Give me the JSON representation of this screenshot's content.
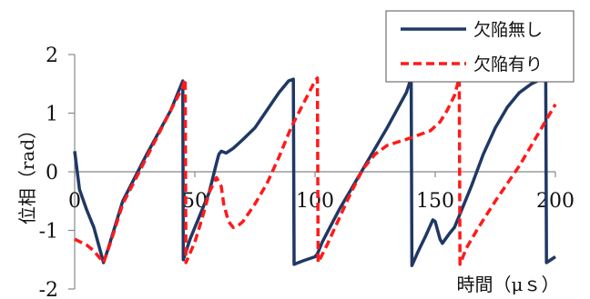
{
  "chart_data": {
    "type": "line",
    "xlabel": "時間（μｓ）",
    "ylabel": "位相（rad）",
    "xlim": [
      0,
      200
    ],
    "ylim": [
      -2,
      2
    ],
    "xticks": [
      "0",
      "50",
      "100",
      "150",
      "200"
    ],
    "yticks": [
      "2",
      "1",
      "0",
      "-1",
      "-2"
    ],
    "grid": false,
    "legend_position": "top-right",
    "series": [
      {
        "name": "欠陥無し",
        "color": "#1f3864",
        "style": "solid",
        "x": [
          0,
          2,
          5,
          8,
          10,
          12,
          14,
          20,
          30,
          40,
          45,
          45.2,
          48,
          52,
          56,
          59,
          60,
          61,
          63,
          66,
          70,
          75,
          80,
          85,
          89,
          91,
          91.3,
          95,
          100,
          101,
          103,
          110,
          120,
          130,
          138,
          140,
          140.3,
          143,
          146,
          149,
          150,
          152,
          153,
          156,
          158,
          160,
          165,
          170,
          175,
          180,
          185,
          190,
          193,
          196,
          196.3,
          200
        ],
        "y": [
          0.35,
          -0.3,
          -0.65,
          -0.95,
          -1.25,
          -1.55,
          -1.3,
          -0.5,
          0.3,
          1.05,
          1.55,
          -1.5,
          -1.15,
          -0.75,
          -0.35,
          0.15,
          0.3,
          0.35,
          0.32,
          0.4,
          0.55,
          0.75,
          1.05,
          1.35,
          1.55,
          1.58,
          -1.58,
          -1.52,
          -1.45,
          -1.4,
          -1.2,
          -0.65,
          0.05,
          0.75,
          1.35,
          1.6,
          -1.6,
          -1.35,
          -1.1,
          -0.82,
          -0.85,
          -1.15,
          -1.22,
          -1.05,
          -0.95,
          -0.75,
          -0.25,
          0.3,
          0.75,
          1.1,
          1.35,
          1.5,
          1.56,
          1.57,
          -1.55,
          -1.45
        ]
      },
      {
        "name": "欠陥有り",
        "color": "#ff1a1a",
        "style": "dashed",
        "x": [
          0,
          5,
          8,
          10,
          12,
          15,
          20,
          30,
          40,
          45,
          46,
          46.3,
          50,
          53,
          56,
          59,
          61,
          62,
          64,
          66,
          68,
          70,
          75,
          80,
          85,
          90,
          95,
          100,
          101,
          101.3,
          105,
          110,
          115,
          120,
          125,
          130,
          140,
          148,
          152,
          155,
          158,
          160,
          160.3,
          163,
          168,
          175,
          180,
          185,
          190,
          195,
          200
        ],
        "y": [
          -1.15,
          -1.25,
          -1.35,
          -1.45,
          -1.55,
          -1.2,
          -0.55,
          0.25,
          1.05,
          1.45,
          1.58,
          -1.55,
          -1.2,
          -0.8,
          -0.35,
          -0.1,
          -0.25,
          -0.55,
          -0.85,
          -0.95,
          -0.92,
          -0.85,
          -0.55,
          -0.2,
          0.25,
          0.75,
          1.15,
          1.55,
          1.6,
          -1.55,
          -1.25,
          -0.8,
          -0.35,
          0.05,
          0.3,
          0.45,
          0.58,
          0.7,
          0.85,
          1.05,
          1.3,
          1.6,
          -1.58,
          -1.3,
          -0.95,
          -0.5,
          -0.2,
          0.1,
          0.45,
          0.8,
          1.15
        ]
      }
    ]
  }
}
